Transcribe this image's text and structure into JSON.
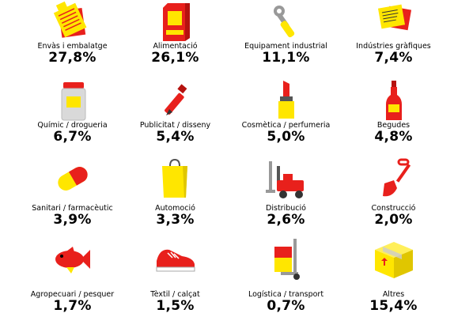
{
  "chart_data": {
    "type": "table",
    "title": "",
    "unit": "%",
    "items": [
      {
        "label": "Envàs i embalatge",
        "value": 27.8,
        "display": "27,8%",
        "icon": "packaging-papers-icon"
      },
      {
        "label": "Alimentació",
        "value": 26.1,
        "display": "26,1%",
        "icon": "food-bag-icon"
      },
      {
        "label": "Equipament industrial",
        "value": 11.1,
        "display": "11,1%",
        "icon": "wrench-icon"
      },
      {
        "label": "Indústries gràfiques",
        "value": 7.4,
        "display": "7,4%",
        "icon": "printed-sheets-icon"
      },
      {
        "label": "Químic / drogueria",
        "value": 6.7,
        "display": "6,7%",
        "icon": "chemical-jar-icon"
      },
      {
        "label": "Publicitat / disseny",
        "value": 5.4,
        "display": "5,4%",
        "icon": "pen-icon"
      },
      {
        "label": "Cosmètica / perfumeria",
        "value": 5.0,
        "display": "5,0%",
        "icon": "lipstick-icon"
      },
      {
        "label": "Begudes",
        "value": 4.8,
        "display": "4,8%",
        "icon": "bottle-icon"
      },
      {
        "label": "Sanitari / farmacèutic",
        "value": 3.9,
        "display": "3,9%",
        "icon": "capsule-icon"
      },
      {
        "label": "Automoció",
        "value": 3.3,
        "display": "3,3%",
        "icon": "shopping-bag-icon"
      },
      {
        "label": "Distribució",
        "value": 2.6,
        "display": "2,6%",
        "icon": "forklift-icon"
      },
      {
        "label": "Construcció",
        "value": 2.0,
        "display": "2,0%",
        "icon": "shovel-icon"
      },
      {
        "label": "Agropecuari / pesquer",
        "value": 1.7,
        "display": "1,7%",
        "icon": "fish-icon"
      },
      {
        "label": "Tèxtil / calçat",
        "value": 1.5,
        "display": "1,5%",
        "icon": "sneaker-icon"
      },
      {
        "label": "Logística / transport",
        "value": 0.7,
        "display": "0,7%",
        "icon": "hand-truck-icon"
      },
      {
        "label": "Altres",
        "value": 15.4,
        "display": "15,4%",
        "icon": "cardboard-box-icon"
      }
    ]
  },
  "colors": {
    "red": "#e8201c",
    "yellow": "#ffe600",
    "gray": "#999999",
    "text": "#000000"
  }
}
